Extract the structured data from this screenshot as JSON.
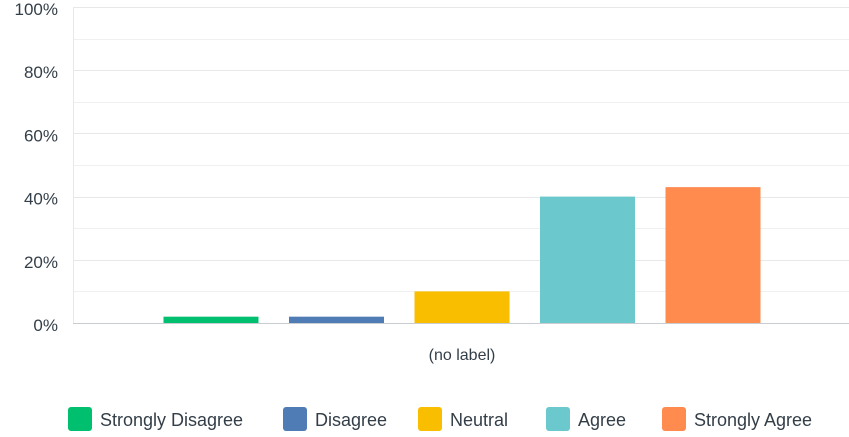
{
  "chart_data": {
    "type": "bar",
    "categories": [
      "(no label)"
    ],
    "series": [
      {
        "name": "Strongly Disagree",
        "values": [
          2
        ],
        "color": "#00bf6f"
      },
      {
        "name": "Disagree",
        "values": [
          2
        ],
        "color": "#507cb6"
      },
      {
        "name": "Neutral",
        "values": [
          10
        ],
        "color": "#f9be00"
      },
      {
        "name": "Agree",
        "values": [
          40
        ],
        "color": "#6bc8cd"
      },
      {
        "name": "Strongly Agree",
        "values": [
          43
        ],
        "color": "#ff8b4f"
      }
    ],
    "ylim": [
      0,
      100
    ],
    "yticks": [
      "0%",
      "20%",
      "40%",
      "60%",
      "80%",
      "100%"
    ],
    "title": "",
    "xlabel": "",
    "ylabel": "",
    "grid": true,
    "legend_position": "bottom"
  }
}
